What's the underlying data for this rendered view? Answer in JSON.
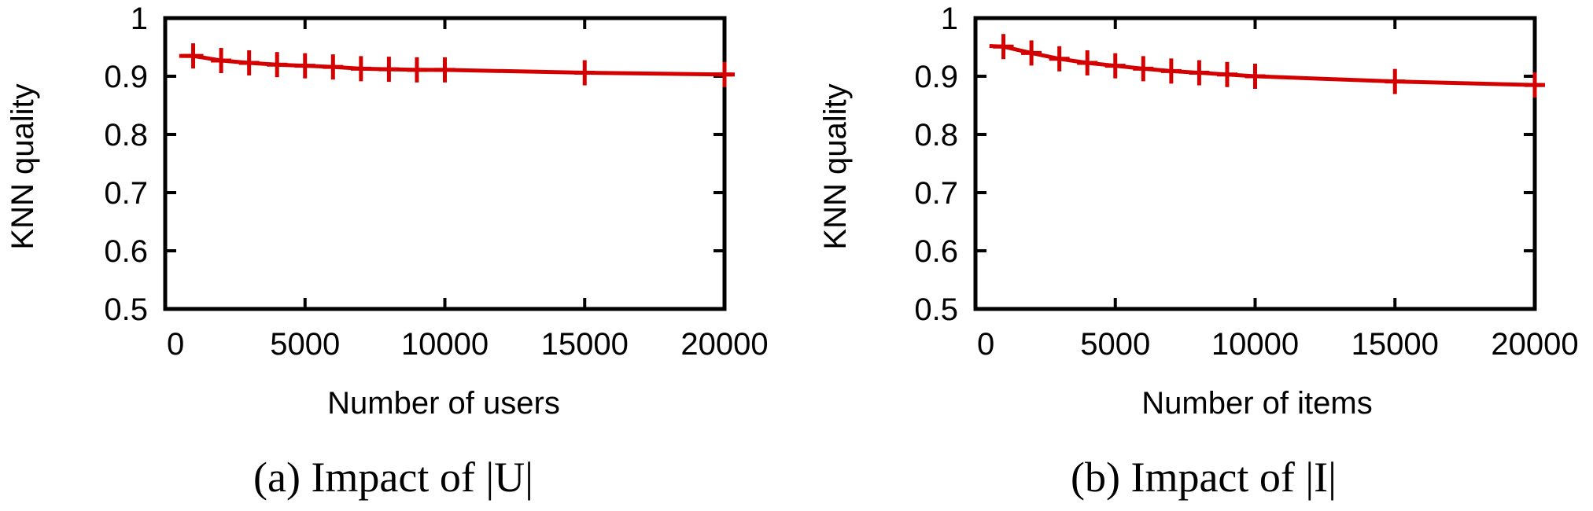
{
  "colors": {
    "series": "#d40000",
    "axis": "#000000"
  },
  "chart_data": [
    {
      "type": "line",
      "xlabel": "Number of users",
      "ylabel": "KNN quality",
      "caption": "(a) Impact of |U|",
      "xlim": [
        0,
        20000
      ],
      "ylim": [
        0.5,
        1
      ],
      "xticks": [
        0,
        5000,
        10000,
        15000,
        20000
      ],
      "yticks": [
        0.5,
        0.6,
        0.7,
        0.8,
        0.9,
        1
      ],
      "grid": false,
      "series": [
        {
          "x": [
            1000,
            2000,
            3000,
            4000,
            5000,
            6000,
            7000,
            8000,
            9000,
            10000,
            15000,
            20000
          ],
          "y": [
            0.935,
            0.927,
            0.923,
            0.92,
            0.918,
            0.916,
            0.913,
            0.912,
            0.911,
            0.911,
            0.906,
            0.903
          ],
          "line_x": [
            500,
            20300
          ],
          "line_y": [
            0.935,
            0.903
          ]
        }
      ]
    },
    {
      "type": "line",
      "xlabel": "Number of items",
      "ylabel": "KNN quality",
      "caption": "(b) Impact of |I|",
      "xlim": [
        0,
        20000
      ],
      "ylim": [
        0.5,
        1
      ],
      "xticks": [
        0,
        5000,
        10000,
        15000,
        20000
      ],
      "yticks": [
        0.5,
        0.6,
        0.7,
        0.8,
        0.9,
        1
      ],
      "grid": false,
      "series": [
        {
          "x": [
            1000,
            2000,
            3000,
            4000,
            5000,
            6000,
            7000,
            8000,
            9000,
            10000,
            15000,
            20000
          ],
          "y": [
            0.951,
            0.94,
            0.93,
            0.923,
            0.918,
            0.913,
            0.909,
            0.906,
            0.903,
            0.9,
            0.891,
            0.885
          ],
          "line_x": [
            500,
            20300
          ],
          "line_y": [
            0.952,
            0.885
          ]
        }
      ]
    }
  ]
}
